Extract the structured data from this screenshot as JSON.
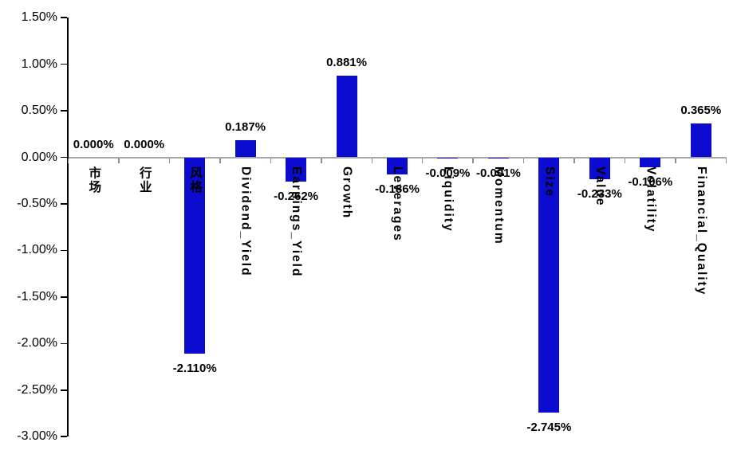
{
  "chart_data": {
    "type": "bar",
    "title": "",
    "xlabel": "",
    "ylabel": "",
    "categories": [
      "市场",
      "行业",
      "风格",
      "Dividend_Yield",
      "Earnings_Yield",
      "Growth",
      "Leverages",
      "Liquidity",
      "Momentum",
      "Size",
      "Value",
      "Volatility",
      "Financial_Quality"
    ],
    "values": [
      0.0,
      0.0,
      -2.11,
      0.187,
      -0.262,
      0.881,
      -0.186,
      -0.009,
      -0.001,
      -2.745,
      -0.233,
      -0.106,
      0.365
    ],
    "data_labels": [
      "0.000%",
      "0.000%",
      "-2.110%",
      "0.187%",
      "-0.262%",
      "0.881%",
      "-0.186%",
      "-0.009%",
      "-0.001%",
      "-2.745%",
      "-0.233%",
      "-0.106%",
      "0.365%"
    ],
    "ylim": [
      -3.0,
      1.5
    ],
    "y_ticks": [
      {
        "value": 1.5,
        "label": "1.50%"
      },
      {
        "value": 1.0,
        "label": "1.00%"
      },
      {
        "value": 0.5,
        "label": "0.50%"
      },
      {
        "value": 0.0,
        "label": "0.00%"
      },
      {
        "value": -0.5,
        "label": "-0.50%"
      },
      {
        "value": -1.0,
        "label": "-1.00%"
      },
      {
        "value": -1.5,
        "label": "-1.50%"
      },
      {
        "value": -2.0,
        "label": "-2.00%"
      },
      {
        "value": -2.5,
        "label": "-2.50%"
      },
      {
        "value": -3.0,
        "label": "-3.00%"
      }
    ],
    "unit": "%",
    "grid": false,
    "legend": false,
    "bar_color": "#0c0cd0",
    "axis_color": "#000000",
    "zero_line_color": "#a6a6a6",
    "label_color": "#000000"
  }
}
